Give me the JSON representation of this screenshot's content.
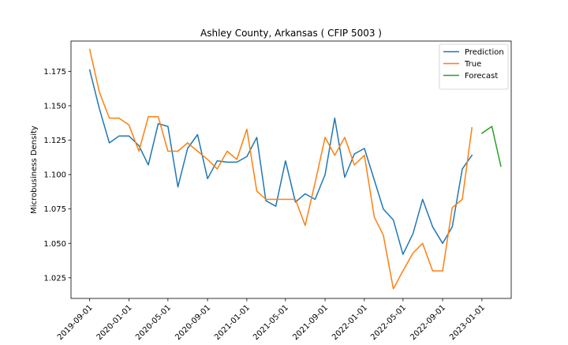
{
  "chart_data": {
    "type": "line",
    "title": "Ashley County, Arkansas ( CFIP 5003 )",
    "xlabel": "",
    "ylabel": "Microbusiness Density",
    "ylim": [
      1.01,
      1.197
    ],
    "xlim": [
      "2019-07-05",
      "2023-04-02"
    ],
    "grid": false,
    "legend_position": "top-right",
    "x_ticks": [
      "2019-09-01",
      "2020-01-01",
      "2020-05-01",
      "2020-09-01",
      "2021-01-01",
      "2021-05-01",
      "2021-09-01",
      "2022-01-01",
      "2022-05-01",
      "2022-09-01",
      "2023-01-01"
    ],
    "y_ticks": [
      "1.025",
      "1.050",
      "1.075",
      "1.100",
      "1.125",
      "1.150",
      "1.175"
    ],
    "series": [
      {
        "name": "Prediction",
        "color": "#1f77b4",
        "x": [
          "2019-09-01",
          "2019-10-01",
          "2019-11-01",
          "2019-12-01",
          "2020-01-01",
          "2020-02-01",
          "2020-03-01",
          "2020-04-01",
          "2020-05-01",
          "2020-06-01",
          "2020-07-01",
          "2020-08-01",
          "2020-09-01",
          "2020-10-01",
          "2020-11-01",
          "2020-12-01",
          "2021-01-01",
          "2021-02-01",
          "2021-03-01",
          "2021-04-01",
          "2021-05-01",
          "2021-06-01",
          "2021-07-01",
          "2021-08-01",
          "2021-09-01",
          "2021-10-01",
          "2021-11-01",
          "2021-12-01",
          "2022-01-01",
          "2022-02-01",
          "2022-03-01",
          "2022-04-01",
          "2022-05-01",
          "2022-06-01",
          "2022-07-01",
          "2022-08-01",
          "2022-09-01",
          "2022-10-01",
          "2022-11-01",
          "2022-12-01"
        ],
        "values": [
          1.176,
          1.148,
          1.123,
          1.128,
          1.128,
          1.121,
          1.107,
          1.137,
          1.135,
          1.091,
          1.119,
          1.129,
          1.097,
          1.11,
          1.109,
          1.109,
          1.113,
          1.127,
          1.081,
          1.077,
          1.11,
          1.08,
          1.086,
          1.082,
          1.1,
          1.141,
          1.098,
          1.115,
          1.119,
          1.096,
          1.075,
          1.067,
          1.042,
          1.057,
          1.082,
          1.062,
          1.05,
          1.062,
          1.104,
          1.114
        ]
      },
      {
        "name": "True",
        "color": "#ff7f0e",
        "x": [
          "2019-09-01",
          "2019-10-01",
          "2019-11-01",
          "2019-12-01",
          "2020-01-01",
          "2020-02-01",
          "2020-03-01",
          "2020-04-01",
          "2020-05-01",
          "2020-06-01",
          "2020-07-01",
          "2020-08-01",
          "2020-09-01",
          "2020-10-01",
          "2020-11-01",
          "2020-12-01",
          "2021-01-01",
          "2021-02-01",
          "2021-03-01",
          "2021-04-01",
          "2021-05-01",
          "2021-06-01",
          "2021-07-01",
          "2021-08-01",
          "2021-09-01",
          "2021-10-01",
          "2021-11-01",
          "2021-12-01",
          "2022-01-01",
          "2022-02-01",
          "2022-03-01",
          "2022-04-01",
          "2022-05-01",
          "2022-06-01",
          "2022-07-01",
          "2022-08-01",
          "2022-09-01",
          "2022-10-01",
          "2022-11-01",
          "2022-12-01"
        ],
        "values": [
          1.191,
          1.16,
          1.141,
          1.141,
          1.136,
          1.117,
          1.142,
          1.142,
          1.117,
          1.117,
          1.123,
          1.117,
          1.111,
          1.104,
          1.117,
          1.111,
          1.133,
          1.088,
          1.082,
          1.082,
          1.082,
          1.082,
          1.063,
          1.094,
          1.127,
          1.114,
          1.127,
          1.107,
          1.114,
          1.069,
          1.056,
          1.017,
          1.03,
          1.043,
          1.05,
          1.03,
          1.03,
          1.076,
          1.082,
          1.134
        ]
      },
      {
        "name": "Forecast",
        "color": "#2ca02c",
        "x": [
          "2023-01-01",
          "2023-02-01",
          "2023-03-01"
        ],
        "values": [
          1.13,
          1.135,
          1.106
        ]
      }
    ]
  }
}
